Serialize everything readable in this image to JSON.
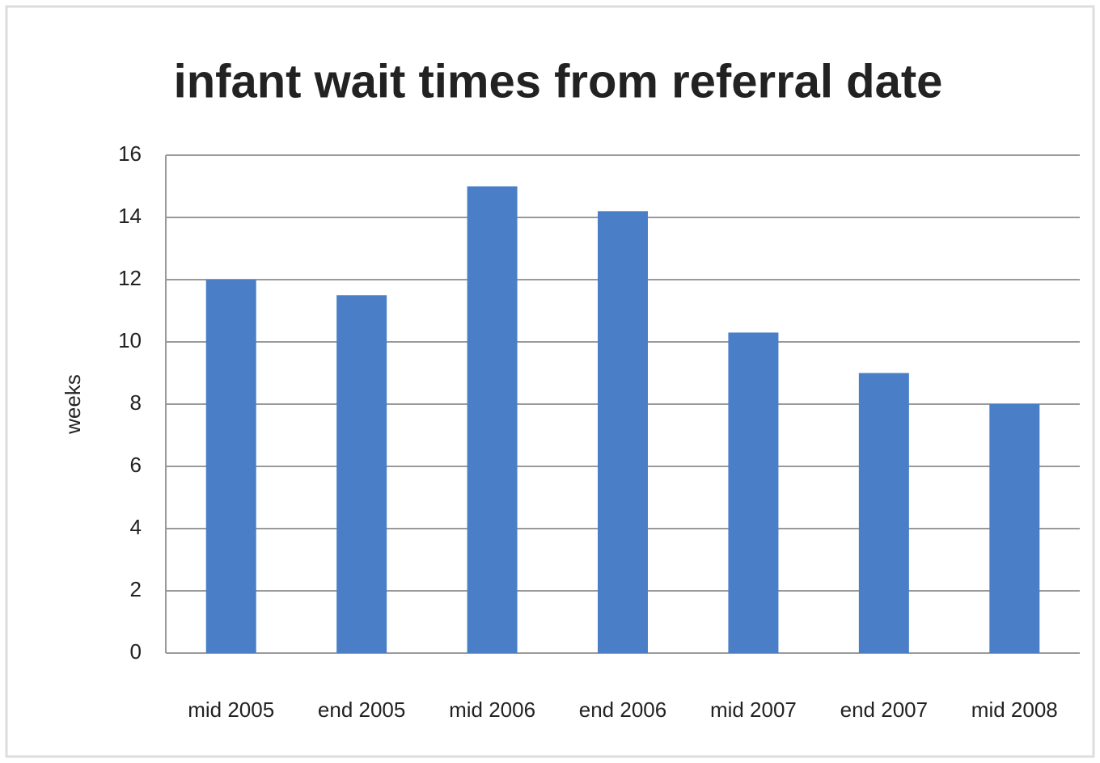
{
  "chart_data": {
    "type": "bar",
    "title": "infant wait times from referral date",
    "y_label": "weeks",
    "categories": [
      "mid 2005",
      "end 2005",
      "mid 2006",
      "end 2006",
      "mid 2007",
      "end 2007",
      "mid 2008"
    ],
    "values": [
      12,
      11.5,
      15,
      14.2,
      10.3,
      9,
      8
    ],
    "color": "#4a7fc8",
    "ylim": [
      0,
      16
    ],
    "yticks": [
      0,
      2,
      4,
      6,
      8,
      10,
      12,
      14,
      16
    ],
    "grid": true
  }
}
